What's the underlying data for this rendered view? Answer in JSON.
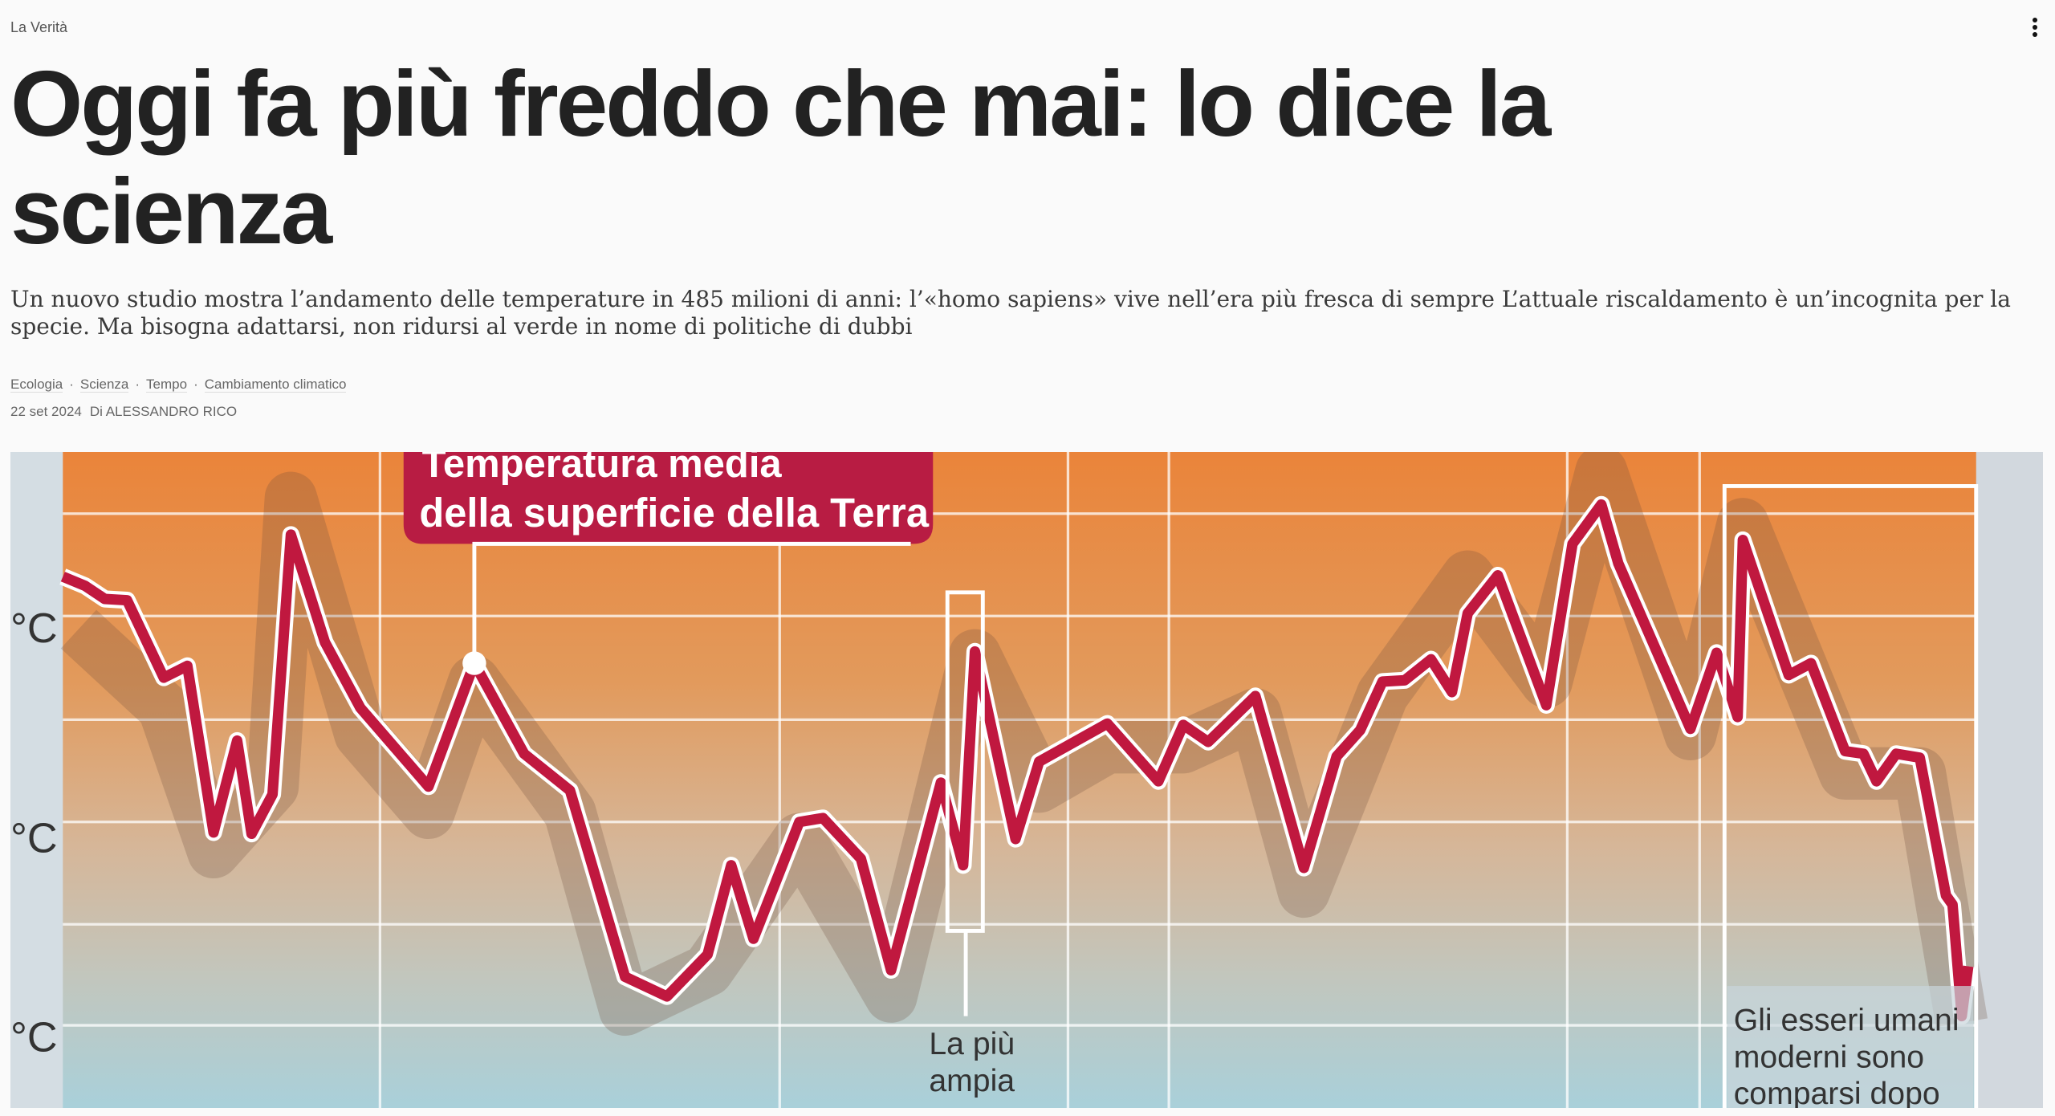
{
  "header": {
    "source": "La Verità",
    "menu_icon": "more-vertical-icon"
  },
  "article": {
    "title": "Oggi fa più freddo che mai: lo dice la scienza",
    "subtitle": "Un nuovo studio mostra l’andamento delle temperature in 485 milioni di anni: l’«homo sapiens» vive nell’era più fresca di sempre L’attuale riscaldamento è un’incognita per la specie. Ma bisogna adattarsi, non ridursi al verde in nome di politiche di dubbi",
    "tags": [
      "Ecologia",
      "Scienza",
      "Tempo",
      "Cambiamento climatico"
    ],
    "date": "22 set 2024",
    "author": "Di ALESSANDRO RICO"
  },
  "figure": {
    "title_line1": "Temperatura media",
    "title_line2": "della superficie della Terra",
    "axis_unit": [
      "°C",
      "°C",
      "°C"
    ],
    "note_mid_line1": "La più",
    "note_mid_line2": "ampia",
    "note_right_line1": "Gli esseri umani",
    "note_right_line2": "moderni sono",
    "note_right_line3": "comparsi dopo",
    "colors": {
      "line": "#c0183f",
      "top": "#ea843a",
      "bottom": "#a9d0da"
    }
  }
}
